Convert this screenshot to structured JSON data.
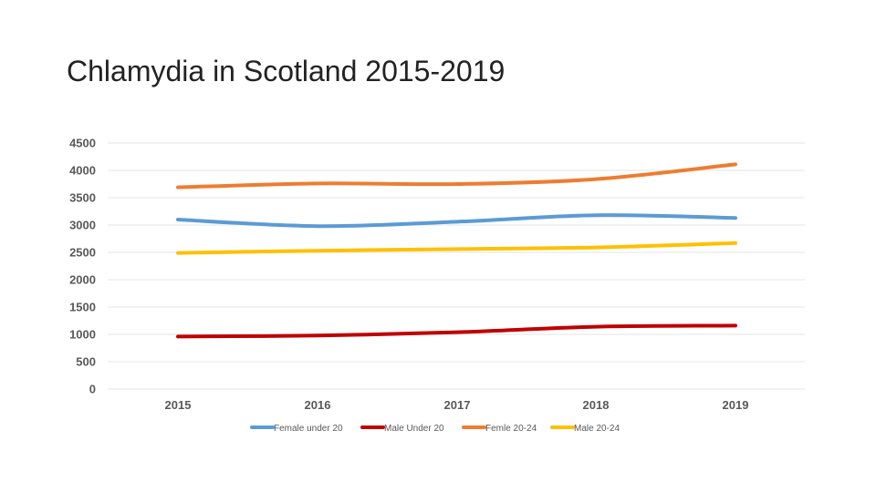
{
  "title": "Chlamydia in Scotland 2015-2019",
  "chart_data": {
    "type": "line",
    "x": [
      "2015",
      "2016",
      "2017",
      "2018",
      "2019"
    ],
    "ylim": [
      0,
      4500
    ],
    "yticks": [
      "4500",
      "4000",
      "3500",
      "3000",
      "2500",
      "2000",
      "1500",
      "1000",
      "500",
      "0"
    ],
    "grid": true,
    "legend_position": "bottom",
    "series": [
      {
        "name": "Female under 20",
        "color": "#5b9bd5",
        "values": [
          3100,
          2980,
          3060,
          3180,
          3130
        ]
      },
      {
        "name": "Male Under 20",
        "color": "#c00000",
        "values": [
          960,
          980,
          1040,
          1140,
          1160
        ]
      },
      {
        "name": "Femle 20-24",
        "color": "#ed7d31",
        "values": [
          3690,
          3760,
          3750,
          3840,
          4110
        ]
      },
      {
        "name": "Male 20-24",
        "color": "#ffc000",
        "values": [
          2490,
          2530,
          2560,
          2590,
          2670
        ]
      }
    ]
  }
}
